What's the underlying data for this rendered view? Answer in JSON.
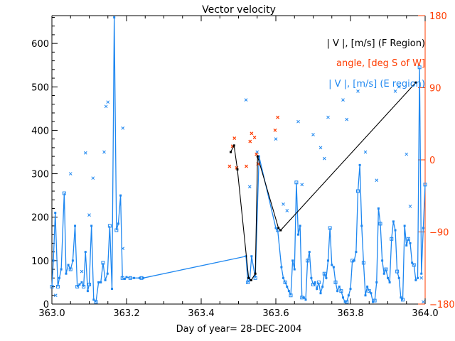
{
  "chart_data": {
    "type": "line",
    "title": "Vector velocity",
    "xlabel": "Day of year= 28-DEC-2004",
    "ylabel": "",
    "xlim": [
      363.0,
      364.0
    ],
    "ylim": [
      0,
      664
    ],
    "y2lim": [
      -180,
      180
    ],
    "x_ticks": [
      363.0,
      363.2,
      363.4,
      363.6,
      363.8,
      364.0
    ],
    "x_tick_labels": [
      "363.0",
      "363.2",
      "363.4",
      "363.6",
      "363.8",
      "364.0"
    ],
    "y_ticks": [
      0,
      100,
      200,
      300,
      400,
      500,
      600
    ],
    "y_tick_labels": [
      "0",
      "100",
      "200",
      "300",
      "400",
      "500",
      "600"
    ],
    "y2_ticks": [
      180,
      90,
      0,
      -90,
      -180
    ],
    "y2_tick_labels": [
      "180",
      "90",
      "0",
      "-90",
      "-180"
    ],
    "grid": false,
    "legend_placement": "top-right",
    "colors": {
      "axes": "#000000",
      "f_region": "#000000",
      "angle": "#ff3c00",
      "e_region": "#1e87f0",
      "right_axis": "#ff3c00"
    },
    "series": [
      {
        "name": "| V |, [m/s] (F Region)",
        "axis": "left",
        "style": "line",
        "x": [
          363.479,
          363.488,
          363.497,
          363.527,
          363.534,
          363.545,
          363.551,
          363.607,
          363.613,
          363.975
        ],
        "y": [
          350,
          365,
          310,
          60,
          55,
          70,
          340,
          175,
          170,
          510
        ]
      },
      {
        "name": "angle, [deg S of W]",
        "axis": "right",
        "style": "marker",
        "x": [
          363.476,
          363.484,
          363.489,
          363.495,
          363.521,
          363.531,
          363.535,
          363.543,
          363.548,
          363.552,
          363.598,
          363.605
        ],
        "y": [
          -8,
          17,
          27,
          -10,
          -8,
          23,
          33,
          28,
          7,
          -5,
          37,
          53
        ]
      },
      {
        "name": "| V |, [m/s] (E region)",
        "axis": "left",
        "style": "line",
        "x": [
          363.0,
          363.004,
          363.009,
          363.016,
          363.02,
          363.025,
          363.033,
          363.038,
          363.044,
          363.05,
          363.056,
          363.062,
          363.068,
          363.074,
          363.08,
          363.085,
          363.09,
          363.096,
          363.1,
          363.106,
          363.112,
          363.118,
          363.125,
          363.131,
          363.137,
          363.143,
          363.149,
          363.155,
          363.161,
          363.167,
          363.173,
          363.178,
          363.184,
          363.189,
          363.195,
          363.2,
          363.21,
          363.22,
          363.235,
          363.24,
          363.245,
          363.52,
          363.525,
          363.53,
          363.535,
          363.545,
          363.555,
          363.6,
          363.605,
          363.615,
          363.62,
          363.625,
          363.63,
          363.635,
          363.64,
          363.645,
          363.65,
          363.655,
          363.66,
          363.665,
          363.67,
          363.675,
          363.68,
          363.685,
          363.69,
          363.695,
          363.7,
          363.705,
          363.71,
          363.715,
          363.72,
          363.725,
          363.73,
          363.735,
          363.74,
          363.745,
          363.75,
          363.755,
          363.76,
          363.765,
          363.77,
          363.775,
          363.78,
          363.785,
          363.79,
          363.795,
          363.8,
          363.805,
          363.81,
          363.815,
          363.82,
          363.825,
          363.83,
          363.835,
          363.84,
          363.845,
          363.85,
          363.855,
          363.86,
          363.865,
          363.87,
          363.875,
          363.88,
          363.885,
          363.89,
          363.895,
          363.9,
          363.905,
          363.91,
          363.915,
          363.92,
          363.925,
          363.93,
          363.935,
          363.94,
          363.945,
          363.95,
          363.955,
          363.96,
          363.965,
          363.97,
          363.975,
          363.98,
          363.985,
          363.99,
          363.995,
          364.0
        ],
        "y": [
          40,
          100,
          210,
          40,
          60,
          80,
          255,
          70,
          90,
          80,
          100,
          180,
          40,
          45,
          50,
          40,
          120,
          30,
          45,
          180,
          10,
          5,
          50,
          50,
          95,
          55,
          70,
          180,
          35,
          660,
          170,
          185,
          250,
          60,
          58,
          62,
          60,
          60,
          60,
          60,
          60,
          110,
          50,
          55,
          110,
          60,
          340,
          175,
          170,
          85,
          60,
          50,
          40,
          30,
          20,
          100,
          80,
          280,
          160,
          180,
          15,
          15,
          10,
          100,
          120,
          60,
          45,
          50,
          35,
          50,
          25,
          40,
          70,
          60,
          100,
          175,
          90,
          85,
          50,
          30,
          40,
          30,
          15,
          5,
          5,
          20,
          35,
          100,
          100,
          120,
          260,
          320,
          180,
          95,
          20,
          40,
          30,
          25,
          5,
          8,
          50,
          220,
          185,
          100,
          70,
          80,
          60,
          50,
          150,
          190,
          170,
          75,
          60,
          15,
          10,
          180,
          135,
          150,
          140,
          95,
          90,
          55,
          60,
          545,
          70,
          175,
          275
        ]
      }
    ]
  }
}
